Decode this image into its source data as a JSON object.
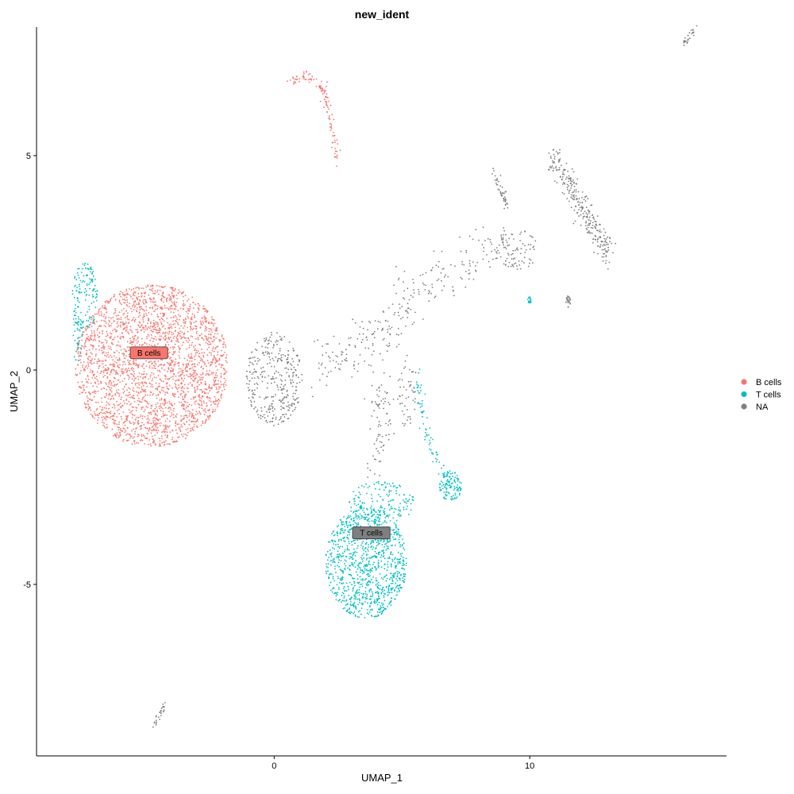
{
  "chart_data": {
    "type": "scatter",
    "title": "new_ident",
    "xlabel": "UMAP_1",
    "ylabel": "UMAP_2",
    "xlim": [
      -9.3,
      17.7
    ],
    "ylim": [
      -9.0,
      8.0
    ],
    "xticks": [
      0,
      10
    ],
    "yticks": [
      -5,
      0,
      5
    ],
    "xtick_labels": [
      "0",
      "10"
    ],
    "ytick_labels": [
      "-5",
      "0",
      "5"
    ],
    "grid": false,
    "legend_position": "right",
    "series": [
      {
        "name": "B cells",
        "label": "B cells",
        "color": "#F8766D"
      },
      {
        "name": "T cells",
        "label": "T cells",
        "color": "#00BFC4"
      },
      {
        "name": "NA",
        "label": "NA",
        "color": "#7F7F7F"
      }
    ],
    "clusters": [
      {
        "series": "B cells",
        "shape": "ellipse",
        "center": [
          -4.8,
          0.1
        ],
        "radius": [
          3.0,
          1.9
        ],
        "count": 2600
      },
      {
        "series": "B cells",
        "shape": "line",
        "points": [
          [
            0.5,
            6.7
          ],
          [
            1.3,
            6.9
          ],
          [
            2.0,
            6.5
          ],
          [
            2.3,
            5.5
          ],
          [
            2.4,
            4.9
          ]
        ],
        "spread": 0.07,
        "count": 120
      },
      {
        "series": "T cells",
        "shape": "ellipse",
        "center": [
          -7.4,
          1.7
        ],
        "radius": [
          0.5,
          0.8
        ],
        "count": 130
      },
      {
        "series": "T cells",
        "shape": "ellipse",
        "center": [
          -7.7,
          0.8
        ],
        "radius": [
          0.2,
          0.6
        ],
        "count": 40
      },
      {
        "series": "T cells",
        "shape": "ellipse",
        "center": [
          3.6,
          -4.5
        ],
        "radius": [
          1.6,
          1.3
        ],
        "count": 1050
      },
      {
        "series": "T cells",
        "shape": "ellipse",
        "center": [
          4.2,
          -3.1
        ],
        "radius": [
          1.3,
          0.5
        ],
        "count": 160
      },
      {
        "series": "T cells",
        "shape": "ellipse",
        "center": [
          6.9,
          -2.7
        ],
        "radius": [
          0.45,
          0.35
        ],
        "count": 120
      },
      {
        "series": "T cells",
        "shape": "line",
        "points": [
          [
            5.6,
            0.0
          ],
          [
            5.7,
            -1.0
          ],
          [
            6.0,
            -1.5
          ],
          [
            6.3,
            -2.0
          ],
          [
            6.6,
            -2.4
          ]
        ],
        "spread": 0.1,
        "count": 70
      },
      {
        "series": "T cells",
        "shape": "ellipse",
        "center": [
          10.0,
          1.65
        ],
        "radius": [
          0.08,
          0.1
        ],
        "count": 18
      },
      {
        "series": "NA",
        "shape": "ellipse",
        "center": [
          0.0,
          -0.2
        ],
        "radius": [
          1.1,
          1.1
        ],
        "count": 340
      },
      {
        "series": "NA",
        "shape": "line",
        "points": [
          [
            1.5,
            -0.1
          ],
          [
            3.0,
            0.4
          ],
          [
            4.5,
            0.9
          ],
          [
            5.0,
            1.5
          ],
          [
            6.5,
            2.1
          ],
          [
            8.0,
            2.7
          ],
          [
            9.0,
            3.1
          ]
        ],
        "spread": 0.3,
        "count": 270
      },
      {
        "series": "NA",
        "shape": "line",
        "points": [
          [
            4.1,
            -0.3
          ],
          [
            4.2,
            -1.0
          ],
          [
            4.1,
            -1.8
          ],
          [
            3.9,
            -2.3
          ]
        ],
        "spread": 0.2,
        "count": 80
      },
      {
        "series": "NA",
        "shape": "line",
        "points": [
          [
            10.8,
            5.0
          ],
          [
            11.5,
            4.4
          ],
          [
            12.2,
            3.6
          ],
          [
            12.8,
            3.0
          ],
          [
            13.1,
            2.7
          ]
        ],
        "spread": 0.15,
        "count": 280
      },
      {
        "series": "NA",
        "shape": "line",
        "points": [
          [
            8.5,
            4.7
          ],
          [
            8.8,
            4.3
          ],
          [
            9.0,
            4.0
          ],
          [
            9.2,
            3.7
          ]
        ],
        "spread": 0.06,
        "count": 45
      },
      {
        "series": "NA",
        "shape": "ellipse",
        "center": [
          9.5,
          2.8
        ],
        "radius": [
          0.8,
          0.5
        ],
        "count": 80
      },
      {
        "series": "NA",
        "shape": "ellipse",
        "center": [
          11.5,
          1.6
        ],
        "radius": [
          0.1,
          0.15
        ],
        "count": 22
      },
      {
        "series": "NA",
        "shape": "ellipse",
        "center": [
          5.2,
          -0.5
        ],
        "radius": [
          0.4,
          0.9
        ],
        "count": 50
      },
      {
        "series": "NA",
        "shape": "line",
        "points": [
          [
            16.0,
            7.6
          ],
          [
            16.3,
            7.8
          ],
          [
            16.5,
            8.0
          ]
        ],
        "spread": 0.04,
        "count": 28
      },
      {
        "series": "NA",
        "shape": "line",
        "points": [
          [
            -4.7,
            -8.3
          ],
          [
            -4.5,
            -8.1
          ],
          [
            -4.3,
            -7.8
          ]
        ],
        "spread": 0.04,
        "count": 28
      }
    ],
    "cluster_labels": [
      {
        "text": "B cells",
        "x": -4.9,
        "y": 0.4,
        "fill": "#F8766D"
      },
      {
        "text": "T cells",
        "x": 3.8,
        "y": -3.8,
        "fill": "#7F7F7F"
      }
    ]
  }
}
